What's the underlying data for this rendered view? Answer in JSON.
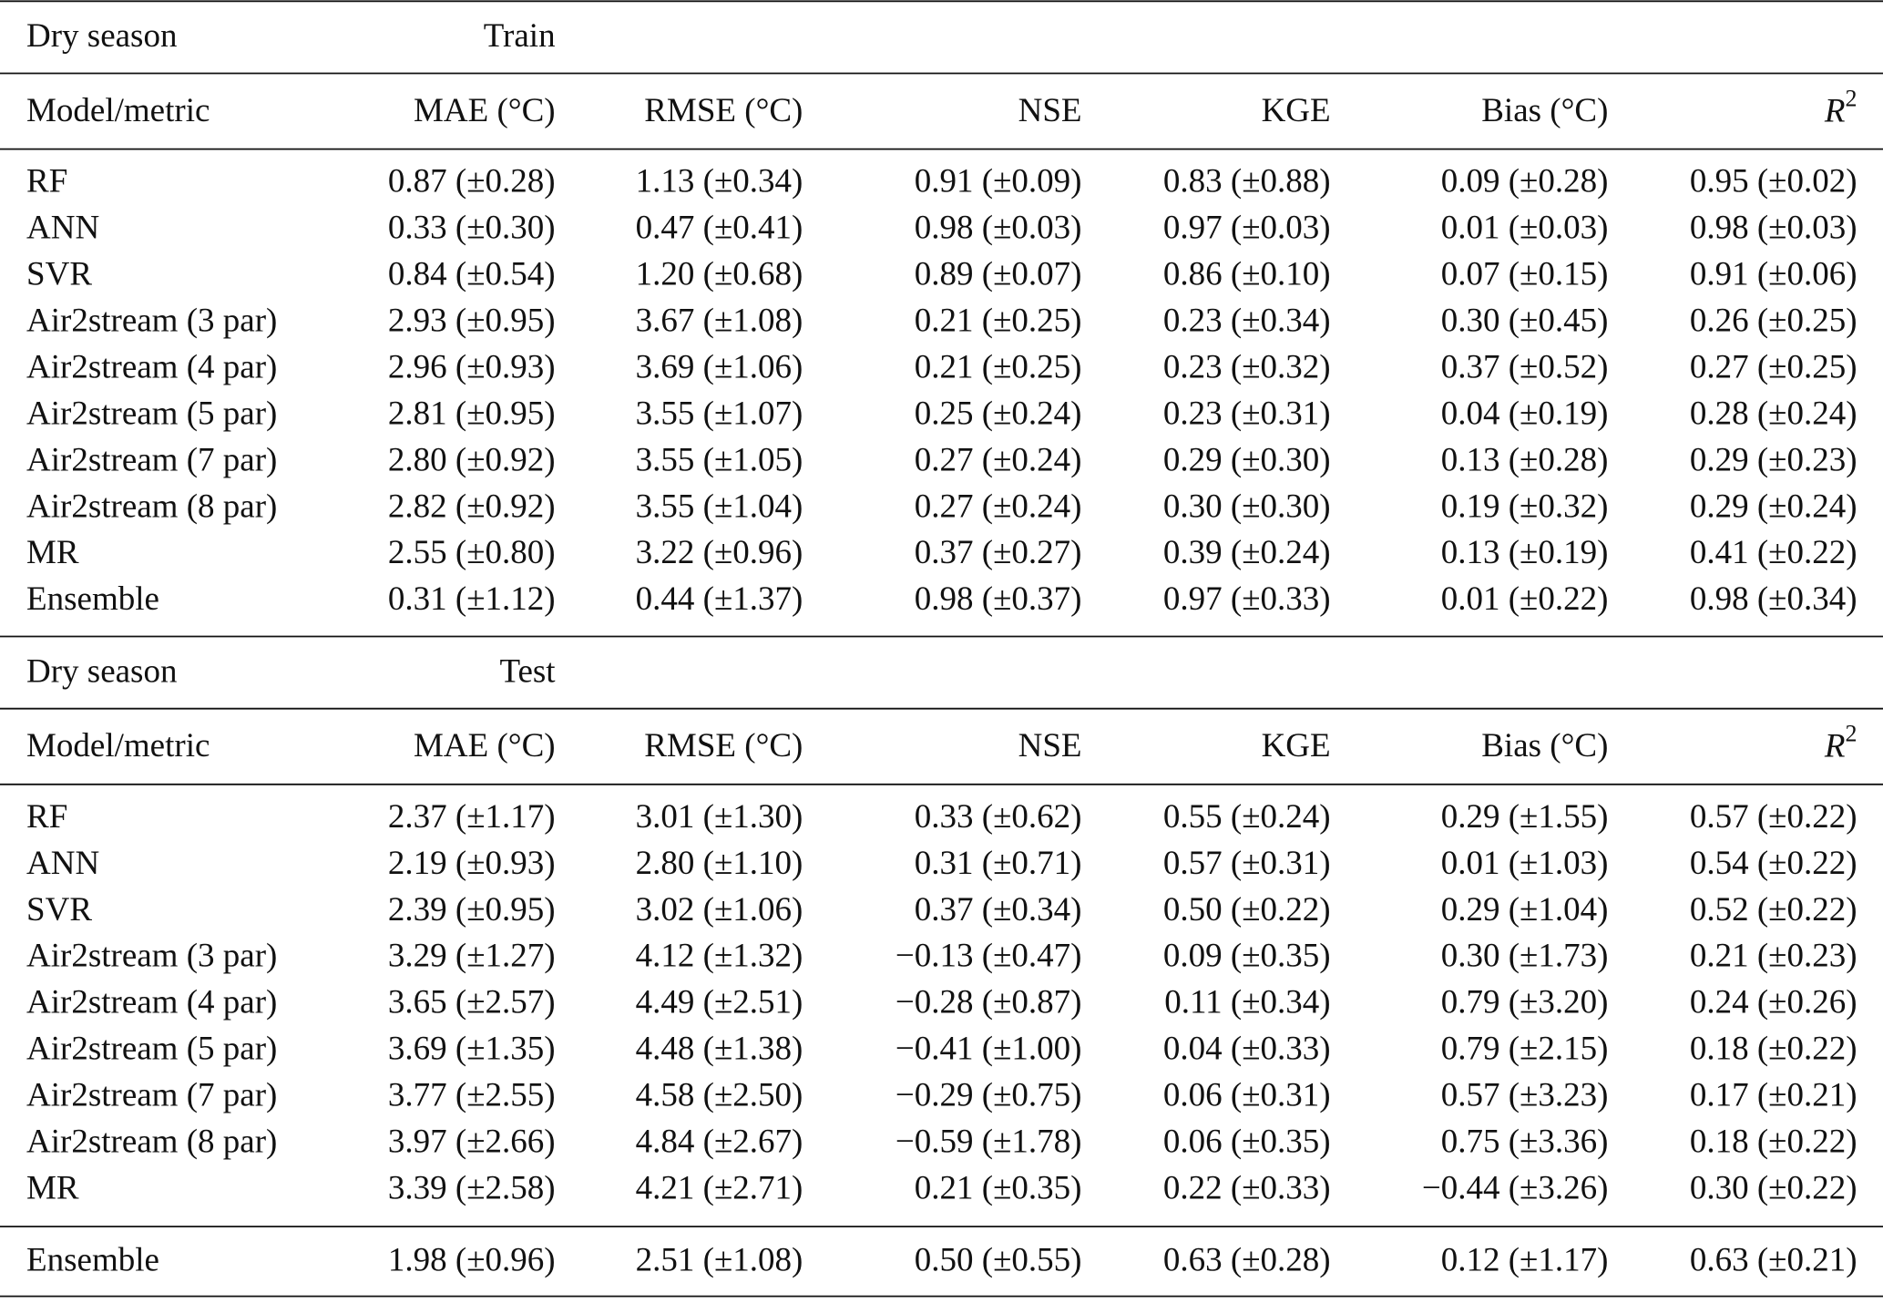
{
  "sections": [
    {
      "label": "Dry season",
      "split": "Train",
      "columns": [
        "Model/metric",
        "MAE (°C)",
        "RMSE (°C)",
        "NSE",
        "KGE",
        "Bias (°C)",
        {
          "text": "R",
          "sup": "2"
        }
      ],
      "rows": [
        [
          "RF",
          "0.87 (±0.28)",
          "1.13 (±0.34)",
          "0.91 (±0.09)",
          "0.83 (±0.88)",
          "0.09 (±0.28)",
          "0.95 (±0.02)"
        ],
        [
          "ANN",
          "0.33 (±0.30)",
          "0.47 (±0.41)",
          "0.98 (±0.03)",
          "0.97 (±0.03)",
          "0.01 (±0.03)",
          "0.98 (±0.03)"
        ],
        [
          "SVR",
          "0.84 (±0.54)",
          "1.20 (±0.68)",
          "0.89 (±0.07)",
          "0.86 (±0.10)",
          "0.07 (±0.15)",
          "0.91 (±0.06)"
        ],
        [
          "Air2stream (3 par)",
          "2.93 (±0.95)",
          "3.67 (±1.08)",
          "0.21 (±0.25)",
          "0.23 (±0.34)",
          "0.30 (±0.45)",
          "0.26 (±0.25)"
        ],
        [
          "Air2stream (4 par)",
          "2.96 (±0.93)",
          "3.69 (±1.06)",
          "0.21 (±0.25)",
          "0.23 (±0.32)",
          "0.37 (±0.52)",
          "0.27 (±0.25)"
        ],
        [
          "Air2stream (5 par)",
          "2.81 (±0.95)",
          "3.55 (±1.07)",
          "0.25 (±0.24)",
          "0.23 (±0.31)",
          "0.04 (±0.19)",
          "0.28 (±0.24)"
        ],
        [
          "Air2stream (7 par)",
          "2.80 (±0.92)",
          "3.55 (±1.05)",
          "0.27 (±0.24)",
          "0.29 (±0.30)",
          "0.13 (±0.28)",
          "0.29 (±0.23)"
        ],
        [
          "Air2stream (8 par)",
          "2.82 (±0.92)",
          "3.55 (±1.04)",
          "0.27 (±0.24)",
          "0.30 (±0.30)",
          "0.19 (±0.32)",
          "0.29 (±0.24)"
        ],
        [
          "MR",
          "2.55 (±0.80)",
          "3.22 (±0.96)",
          "0.37 (±0.27)",
          "0.39 (±0.24)",
          "0.13 (±0.19)",
          "0.41 (±0.22)"
        ],
        [
          "Ensemble",
          "0.31 (±1.12)",
          "0.44 (±1.37)",
          "0.98 (±0.37)",
          "0.97 (±0.33)",
          "0.01 (±0.22)",
          "0.98 (±0.34)"
        ]
      ]
    },
    {
      "label": "Dry season",
      "split": "Test",
      "columns": [
        "Model/metric",
        "MAE (°C)",
        "RMSE (°C)",
        "NSE",
        "KGE",
        "Bias (°C)",
        {
          "text": "R",
          "sup": "2"
        }
      ],
      "rows": [
        [
          "RF",
          "2.37 (±1.17)",
          "3.01 (±1.30)",
          "0.33 (±0.62)",
          "0.55 (±0.24)",
          "0.29 (±1.55)",
          "0.57 (±0.22)"
        ],
        [
          "ANN",
          "2.19 (±0.93)",
          "2.80 (±1.10)",
          "0.31 (±0.71)",
          "0.57 (±0.31)",
          "0.01 (±1.03)",
          "0.54 (±0.22)"
        ],
        [
          "SVR",
          "2.39 (±0.95)",
          "3.02 (±1.06)",
          "0.37 (±0.34)",
          "0.50 (±0.22)",
          "0.29 (±1.04)",
          "0.52 (±0.22)"
        ],
        [
          "Air2stream (3 par)",
          "3.29 (±1.27)",
          "4.12 (±1.32)",
          "−0.13 (±0.47)",
          "0.09 (±0.35)",
          "0.30 (±1.73)",
          "0.21 (±0.23)"
        ],
        [
          "Air2stream (4 par)",
          "3.65 (±2.57)",
          "4.49 (±2.51)",
          "−0.28 (±0.87)",
          "0.11 (±0.34)",
          "0.79 (±3.20)",
          "0.24 (±0.26)"
        ],
        [
          "Air2stream (5 par)",
          "3.69 (±1.35)",
          "4.48 (±1.38)",
          "−0.41 (±1.00)",
          "0.04 (±0.33)",
          "0.79 (±2.15)",
          "0.18 (±0.22)"
        ],
        [
          "Air2stream (7 par)",
          "3.77 (±2.55)",
          "4.58 (±2.50)",
          "−0.29 (±0.75)",
          "0.06 (±0.31)",
          "0.57 (±3.23)",
          "0.17 (±0.21)"
        ],
        [
          "Air2stream (8 par)",
          "3.97 (±2.66)",
          "4.84 (±2.67)",
          "−0.59 (±1.78)",
          "0.06 (±0.35)",
          "0.75 (±3.36)",
          "0.18 (±0.22)"
        ],
        [
          "MR",
          "3.39 (±2.58)",
          "4.21 (±2.71)",
          "0.21 (±0.35)",
          "0.22 (±0.33)",
          "−0.44 (±3.26)",
          "0.30 (±0.22)"
        ]
      ],
      "footer_rows": [
        [
          "Ensemble",
          "1.98 (±0.96)",
          "2.51 (±1.08)",
          "0.50 (±0.55)",
          "0.63 (±0.28)",
          "0.12 (±1.17)",
          "0.63 (±0.21)"
        ]
      ]
    }
  ]
}
